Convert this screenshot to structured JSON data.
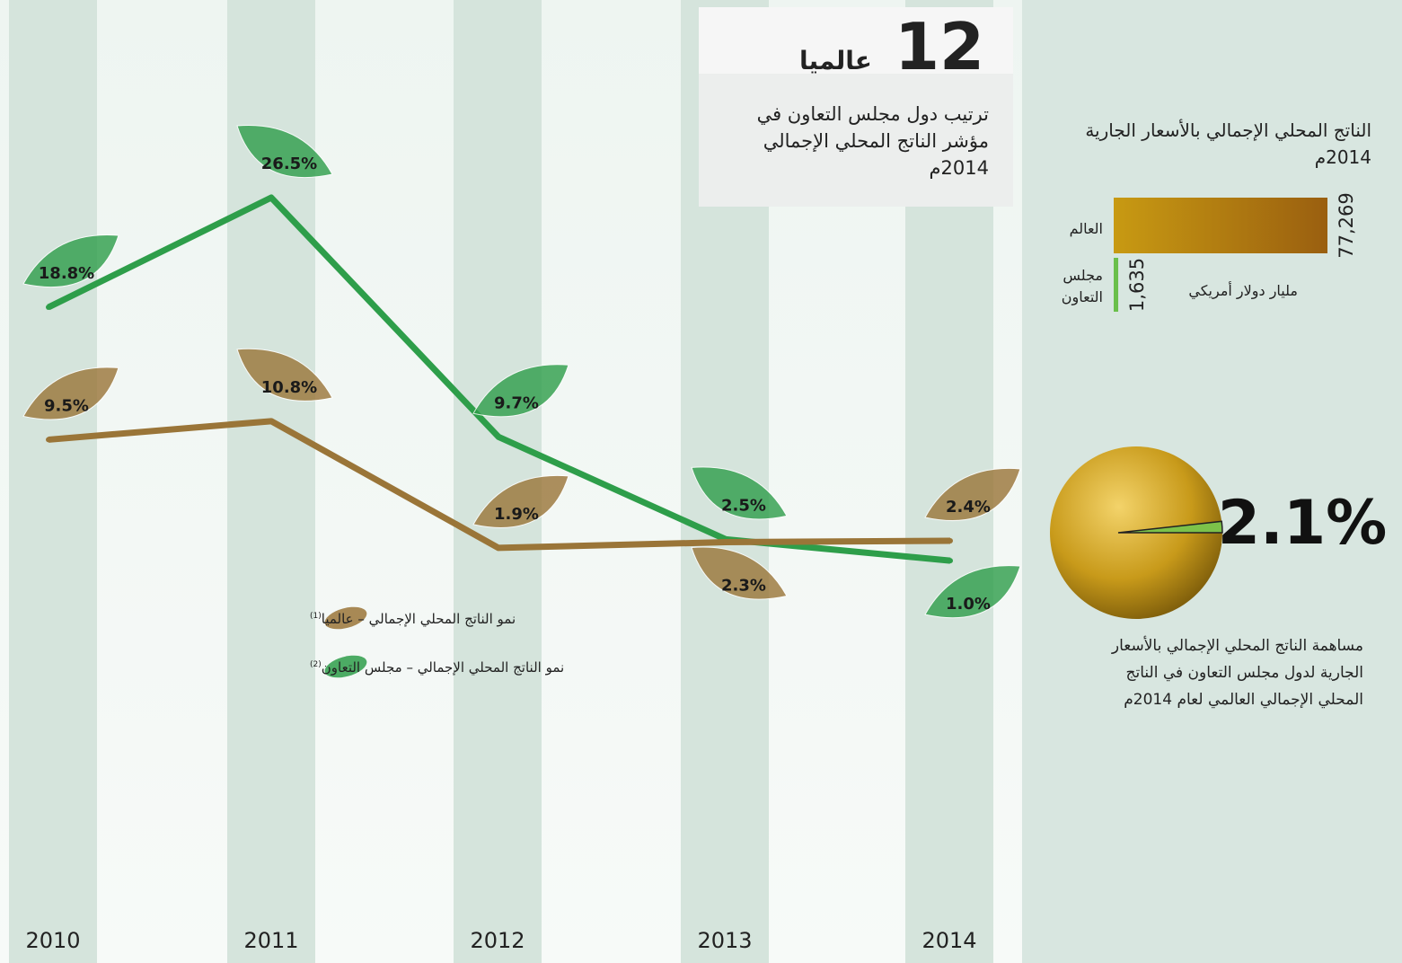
{
  "ranking": {
    "rank": "12",
    "rank_label": "عالميا",
    "caption_lines": [
      "ترتيب دول مجلس التعاون في",
      "مؤشر الناتج المحلي الإجمالي",
      "2014م"
    ]
  },
  "chart_data": [
    {
      "type": "line",
      "categories": [
        "2010",
        "2011",
        "2012",
        "2013",
        "2014"
      ],
      "series": [
        {
          "name": "نمو الناتج المحلي الإجمالي – مجلس التعاون",
          "note": "(2)",
          "color": "#2e9e4a",
          "values": [
            18.8,
            26.5,
            9.7,
            2.5,
            1.0
          ],
          "value_labels": [
            "18.8%",
            "26.5%",
            "9.7%",
            "2.5%",
            "1.0%"
          ]
        },
        {
          "name": "نمو الناتج المحلي الإجمالي – عالميا",
          "note": "(1)",
          "color": "#9a7538",
          "values": [
            9.5,
            10.8,
            1.9,
            2.3,
            2.4
          ],
          "value_labels": [
            "9.5%",
            "10.8%",
            "1.9%",
            "2.3%",
            "2.4%"
          ]
        }
      ]
    },
    {
      "type": "bar",
      "orientation": "horizontal",
      "title_lines": [
        "الناتج المحلي الإجمالي بالأسعار الجارية",
        "2014م"
      ],
      "categories": [
        "العالم",
        "مجلس التعاون"
      ],
      "values": [
        77269,
        1635
      ],
      "value_labels": [
        "77,269",
        "1,635"
      ],
      "unit": "مليار دولار أمريكي",
      "colors": [
        "#b8860b",
        "#6abf4b"
      ]
    },
    {
      "type": "pie",
      "values": [
        2.1
      ],
      "value_labels": [
        "2.1%"
      ],
      "color": "#7cc24a",
      "caption_lines": [
        "مساهمة الناتج المحلي الإجمالي بالأسعار",
        "الجارية لدول مجلس التعاون في الناتج",
        "المحلي الإجمالي العالمي لعام 2014م"
      ]
    }
  ]
}
